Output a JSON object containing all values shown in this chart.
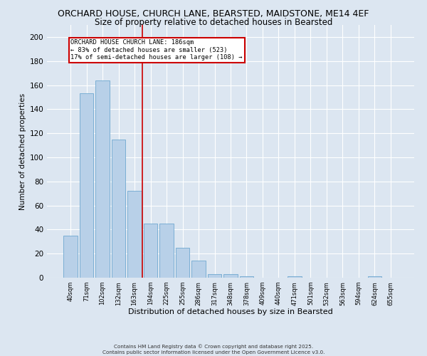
{
  "title_line1": "ORCHARD HOUSE, CHURCH LANE, BEARSTED, MAIDSTONE, ME14 4EF",
  "title_line2": "Size of property relative to detached houses in Bearsted",
  "xlabel": "Distribution of detached houses by size in Bearsted",
  "ylabel": "Number of detached properties",
  "categories": [
    "40sqm",
    "71sqm",
    "102sqm",
    "132sqm",
    "163sqm",
    "194sqm",
    "225sqm",
    "255sqm",
    "286sqm",
    "317sqm",
    "348sqm",
    "378sqm",
    "409sqm",
    "440sqm",
    "471sqm",
    "501sqm",
    "532sqm",
    "563sqm",
    "594sqm",
    "624sqm",
    "655sqm"
  ],
  "values": [
    35,
    153,
    164,
    115,
    72,
    45,
    45,
    25,
    14,
    3,
    3,
    1,
    0,
    0,
    1,
    0,
    0,
    0,
    0,
    1,
    0
  ],
  "bar_color": "#b8d0e8",
  "bar_edge_color": "#6fa8d0",
  "reference_line_color": "#cc0000",
  "annotation_box_color": "#cc0000",
  "ylim": [
    0,
    210
  ],
  "yticks": [
    0,
    20,
    40,
    60,
    80,
    100,
    120,
    140,
    160,
    180,
    200
  ],
  "background_color": "#dce6f1",
  "plot_bg_color": "#dce6f1",
  "footer_line1": "Contains HM Land Registry data © Crown copyright and database right 2025.",
  "footer_line2": "Contains public sector information licensed under the Open Government Licence v3.0.",
  "title_fontsize": 9,
  "subtitle_fontsize": 8.5,
  "xlabel_fontsize": 8,
  "ylabel_fontsize": 7.5,
  "annotation_line1": "ORCHARD HOUSE CHURCH LANE: 186sqm",
  "annotation_line2": "← 83% of detached houses are smaller (523)",
  "annotation_line3": "17% of semi-detached houses are larger (108) →",
  "ref_bar_index": 4.5
}
